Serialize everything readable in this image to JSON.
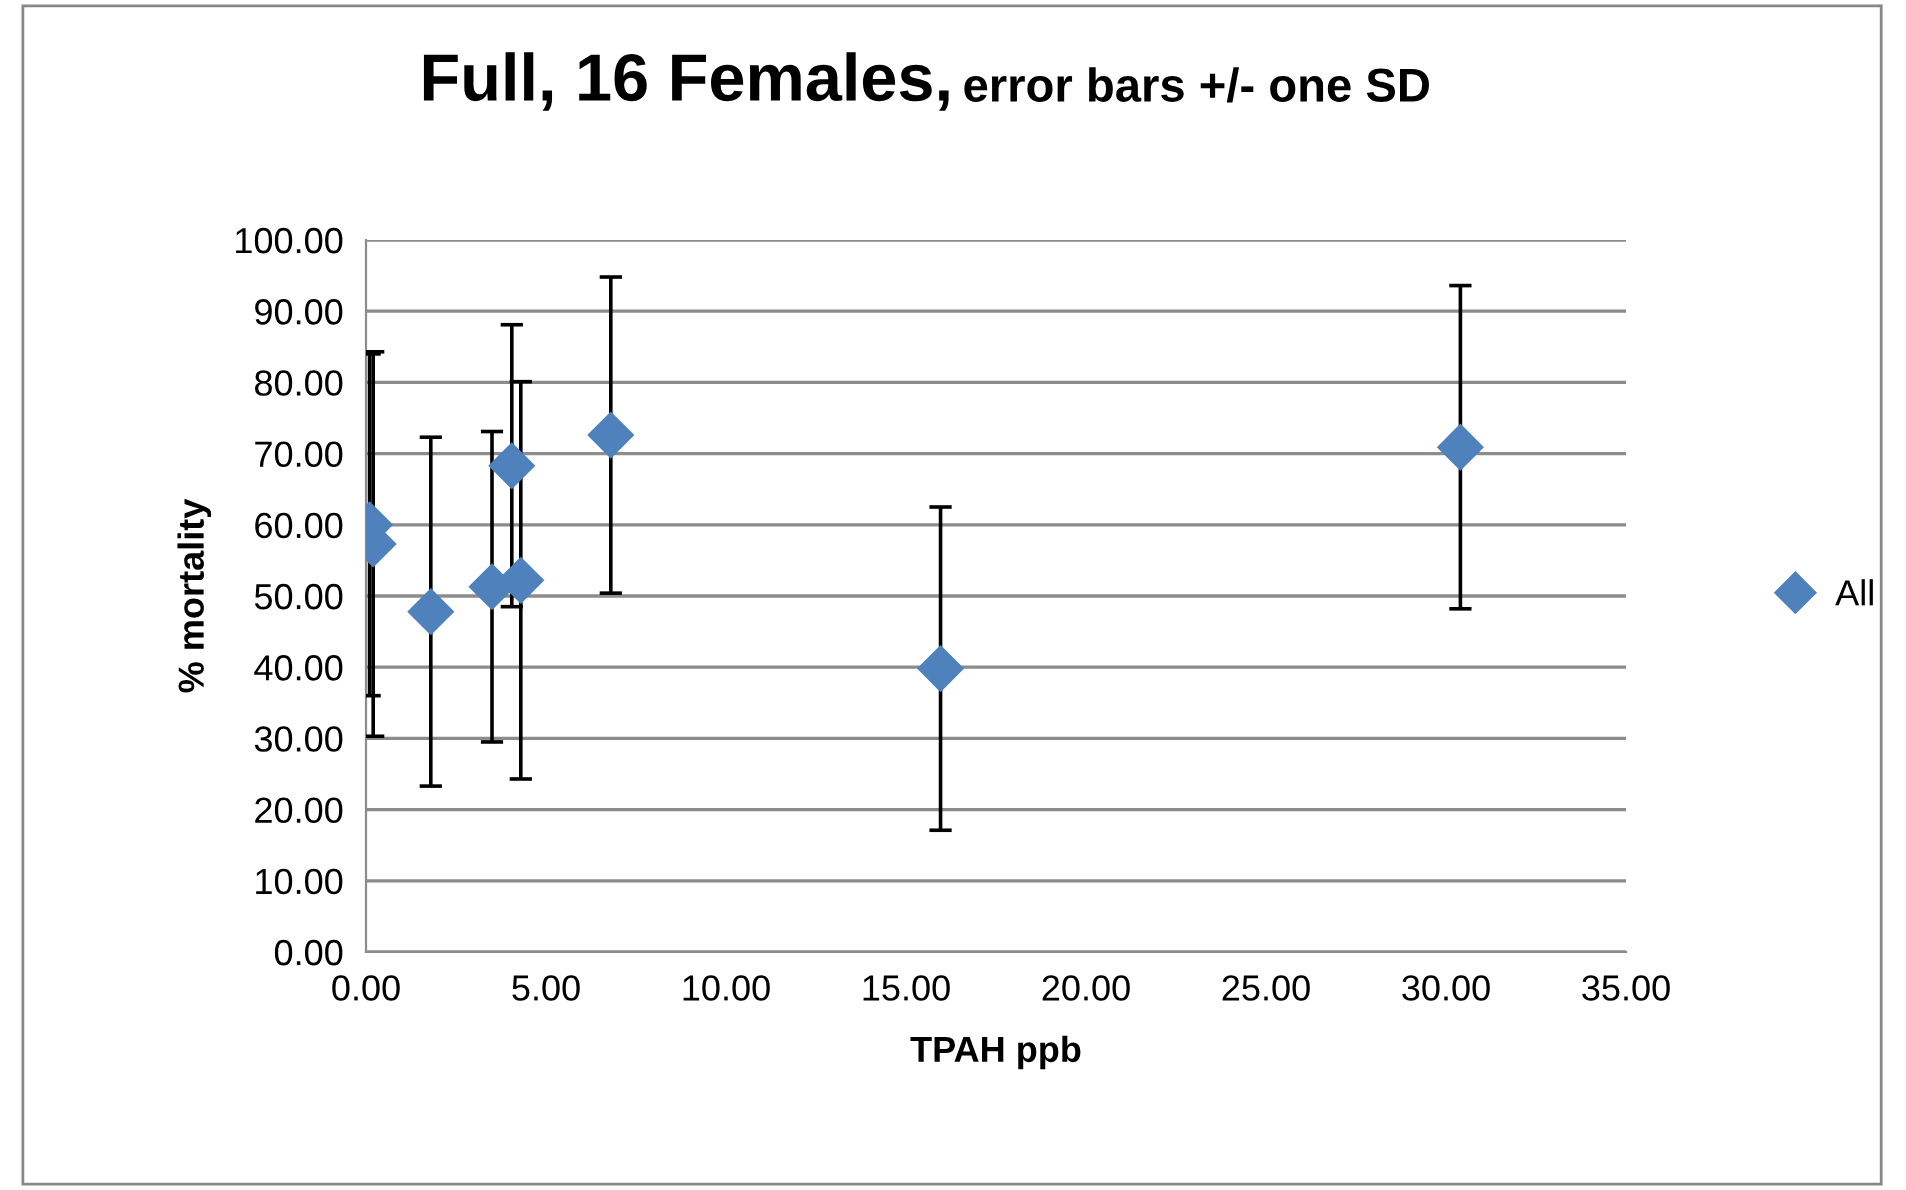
{
  "chart_data": {
    "type": "scatter",
    "title": "Full, 16 Females,",
    "subtitle": "error bars +/- one SD",
    "xlabel": "TPAH ppb",
    "ylabel": "% mortality",
    "series": [
      {
        "name": "All",
        "color": "#4f81bd",
        "x": [
          0.1,
          0.2,
          1.8,
          3.5,
          4.05,
          4.3,
          6.8,
          15.96,
          30.4
        ],
        "values": [
          60.0,
          57.3,
          47.8,
          51.3,
          68.3,
          52.2,
          72.6,
          39.8,
          70.9
        ],
        "errors": [
          24.0,
          27.0,
          24.5,
          21.8,
          19.8,
          27.9,
          22.2,
          22.7,
          22.7
        ]
      }
    ],
    "marker": "diamond",
    "legend": "right",
    "grid": "y",
    "xlim": [
      0,
      35
    ],
    "ylim": [
      0,
      100
    ],
    "xticks": [
      {
        "value": 0,
        "label": "0.00"
      },
      {
        "value": 5,
        "label": "5.00"
      },
      {
        "value": 10,
        "label": "10.00"
      },
      {
        "value": 15,
        "label": "15.00"
      },
      {
        "value": 20,
        "label": "20.00"
      },
      {
        "value": 25,
        "label": "25.00"
      },
      {
        "value": 30,
        "label": "30.00"
      },
      {
        "value": 35,
        "label": "35.00"
      }
    ],
    "yticks": [
      {
        "value": 0,
        "label": "0.00"
      },
      {
        "value": 10,
        "label": "10.00"
      },
      {
        "value": 20,
        "label": "20.00"
      },
      {
        "value": 30,
        "label": "30.00"
      },
      {
        "value": 40,
        "label": "40.00"
      },
      {
        "value": 50,
        "label": "50.00"
      },
      {
        "value": 60,
        "label": "60.00"
      },
      {
        "value": 70,
        "label": "70.00"
      },
      {
        "value": 80,
        "label": "80.00"
      },
      {
        "value": 90,
        "label": "90.00"
      },
      {
        "value": 100,
        "label": "100.00"
      }
    ]
  }
}
